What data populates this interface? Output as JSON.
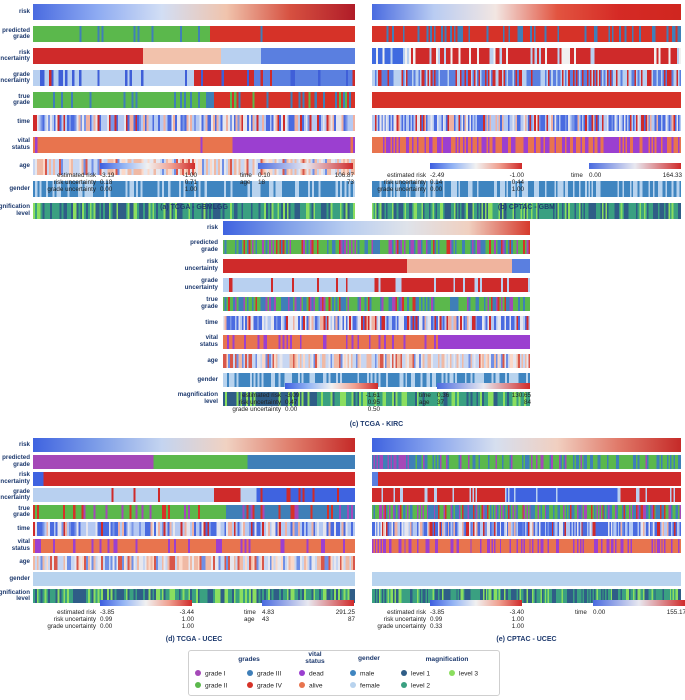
{
  "chart_data": {
    "type": "heatmap",
    "colors": {
      "grade I": "#a548b8",
      "grade II": "#5bb84c",
      "grade III": "#3f7fb8",
      "grade IV": "#d63228",
      "dead": "#9b3fd0",
      "alive": "#e8744e",
      "male": "#3f85c0",
      "female": "#b8d3ee",
      "level 1": "#2f5d87",
      "level 2": "#3aa081",
      "level 3": "#8bde5f"
    },
    "panels": [
      {
        "id": "a",
        "caption": "(a) TCGA - GBMLGG",
        "rows": [
          "risk",
          "predicted grade",
          "risk uncertainty",
          "grade uncertainty",
          "true grade",
          "time",
          "vital status",
          "age",
          "gender",
          "magnification level"
        ],
        "tracks": {
          "risk": {
            "kind": "gradient",
            "stops": [
              "#4a6be0",
              "#88aaf0",
              "#cfdcf3",
              "#f0c7b0",
              "#d85040",
              "#b01c28"
            ]
          },
          "predicted grade": {
            "kind": "segments",
            "segs": [
              [
                "grade II",
                0.55
              ],
              [
                "grade IV",
                0.45
              ]
            ],
            "noise": 0.04
          },
          "risk uncertainty": {
            "kind": "segments",
            "segs": [
              [
                "#cf2a2a",
                0.34
              ],
              [
                "#f2c2ac",
                0.24
              ],
              [
                "#b8d0f0",
                0.12
              ],
              [
                "#5a7fe0",
                0.3
              ]
            ],
            "noise": 0
          }
        },
        "legend": {
          "left": [
            [
              "estimated risk",
              "-3.19",
              "-1.00"
            ],
            [
              "risk uncertainty",
              "0.18",
              "0.71"
            ],
            [
              "grade uncertainty",
              "0.00",
              "1.00"
            ]
          ],
          "right": [
            [
              "time",
              "0.10",
              "106.87"
            ],
            [
              "age",
              "18",
              "73"
            ]
          ]
        }
      },
      {
        "id": "b",
        "caption": "(b) CPTAC - GBM",
        "rows": [
          "risk",
          "predicted grade",
          "risk uncertainty",
          "grade uncertainty",
          "true grade",
          "time",
          "vital status",
          "age",
          "gender",
          "magnification level"
        ],
        "legend": {
          "left": [
            [
              "estimated risk",
              "-2.49",
              "-1.00"
            ],
            [
              "risk uncertainty",
              "0.14",
              "0.44"
            ],
            [
              "grade uncertainty",
              "0.00",
              "1.00"
            ]
          ],
          "right": [
            [
              "time",
              "0.00",
              "164.33"
            ]
          ]
        }
      },
      {
        "id": "c",
        "caption": "(c) TCGA - KIRC",
        "rows": [
          "risk",
          "predicted grade",
          "risk uncertainty",
          "grade uncertainty",
          "true grade",
          "time",
          "vital status",
          "age",
          "gender",
          "magnification level"
        ],
        "legend": {
          "left": [
            [
              "estimated risk",
              "-3.09",
              "-1.61"
            ],
            [
              "risk uncertainty",
              "0.47",
              "0.95"
            ],
            [
              "grade uncertainty",
              "0.00",
              "0.50"
            ]
          ],
          "right": [
            [
              "time",
              "0.36",
              "130.65"
            ],
            [
              "age",
              "37",
              "84"
            ]
          ]
        }
      },
      {
        "id": "d",
        "caption": "(d) TCGA - UCEC",
        "rows": [
          "risk",
          "predicted grade",
          "risk uncertainty",
          "grade uncertainty",
          "true grade",
          "time",
          "vital status",
          "age",
          "gender",
          "magnification level"
        ],
        "legend": {
          "left": [
            [
              "estimated risk",
              "-3.85",
              "-3.44"
            ],
            [
              "risk uncertainty",
              "0.99",
              "1.00"
            ],
            [
              "grade uncertainty",
              "0.00",
              "1.00"
            ]
          ],
          "right": [
            [
              "time",
              "4.83",
              "291.25"
            ],
            [
              "age",
              "43",
              "87"
            ]
          ]
        }
      },
      {
        "id": "e",
        "caption": "(e) CPTAC - UCEC",
        "rows": [
          "risk",
          "predicted grade",
          "risk uncertainty",
          "grade uncertainty",
          "true grade",
          "time",
          "vital status",
          "age",
          "gender",
          "magnification level"
        ],
        "legend": {
          "left": [
            [
              "estimated risk",
              "-3.85",
              "-3.40"
            ],
            [
              "risk uncertainty",
              "0.99",
              "1.00"
            ],
            [
              "grade uncertainty",
              "0.33",
              "1.00"
            ]
          ],
          "right": [
            [
              "time",
              "0.00",
              "155.17"
            ]
          ]
        }
      }
    ],
    "legend": {
      "grades": {
        "title": "grades",
        "items": [
          "grade I",
          "grade II",
          "grade III",
          "grade IV"
        ]
      },
      "vital": {
        "title": "vital status",
        "items": [
          "dead",
          "alive"
        ]
      },
      "gender": {
        "title": "gender",
        "items": [
          "male",
          "female"
        ]
      },
      "magnification": {
        "title": "magnification",
        "items": [
          "level 1",
          "level 2",
          "level 3"
        ]
      }
    }
  }
}
